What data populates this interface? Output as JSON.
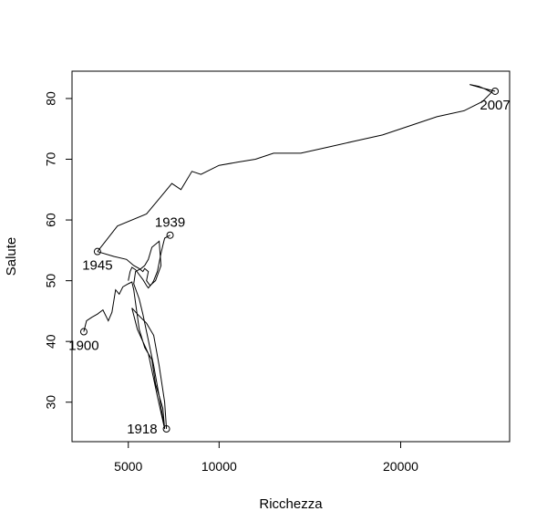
{
  "chart_data": {
    "type": "line",
    "title": "",
    "xlabel": "Ricchezza",
    "ylabel": "Salute",
    "x_ticks": [
      5000,
      10000,
      20000
    ],
    "y_ticks": [
      30,
      40,
      50,
      60,
      70,
      80
    ],
    "xlim": [
      1900,
      26000
    ],
    "ylim": [
      23.5,
      84.5
    ],
    "grid": false,
    "legend": "none",
    "line_color": "#000000",
    "series": [
      {
        "x": [
          2550,
          2700,
          3000,
          3300,
          3600,
          3900,
          4100,
          4300,
          4500,
          4700,
          5000,
          5200,
          5300,
          5600,
          5900,
          6300,
          6500,
          6900,
          7000,
          6600,
          6100,
          5500,
          5200,
          5500,
          6000,
          6400,
          6700,
          7000,
          7100
        ],
        "y": [
          41.6,
          43.4,
          44.0,
          44.5,
          45.2,
          43.4,
          44.8,
          48.5,
          47.8,
          49.0,
          49.5,
          49.8,
          48.5,
          42.0,
          39.0,
          37.0,
          33.0,
          29.0,
          25.6,
          31.0,
          38.0,
          42.0,
          45.5,
          44.5,
          43.0,
          41.0,
          36.0,
          30.0,
          25.6
        ]
      },
      {
        "x": [
          7000,
          6700,
          6400,
          5800,
          5600,
          5300,
          5400,
          5700,
          5900,
          6100,
          6300,
          6700,
          6800,
          6500,
          6200,
          6000,
          6100,
          5900,
          5800,
          5600,
          5300,
          4900,
          4200,
          3300
        ],
        "y": [
          25.6,
          31.0,
          36.0,
          44.5,
          47.0,
          49.5,
          51.5,
          52.0,
          52.5,
          53.5,
          55.5,
          56.5,
          52.5,
          50.0,
          49.2,
          50.0,
          51.5,
          52.0,
          51.5,
          52.0,
          52.5,
          53.5,
          54.0,
          54.8
        ]
      },
      {
        "x": [
          7300,
          7000,
          6900,
          6800,
          6700,
          6600,
          6400,
          6300,
          6100,
          6000,
          5800,
          5600,
          5400,
          5200,
          5100,
          5000
        ],
        "y": [
          57.5,
          57.0,
          55.8,
          54.5,
          53.0,
          51.5,
          50.0,
          49.5,
          48.8,
          49.2,
          50.2,
          51.0,
          51.8,
          52.2,
          51.5,
          50.0
        ]
      },
      {
        "x": [
          3300,
          4400,
          6000,
          6700,
          7400,
          7900,
          8500,
          9000,
          10000,
          11000,
          12000,
          13000,
          14500,
          16000,
          17500,
          19000,
          20500,
          22000,
          23500,
          24500,
          25000,
          24700,
          24300,
          23800,
          24400,
          25200
        ],
        "y": [
          54.8,
          59.0,
          61.0,
          63.5,
          66.0,
          65.0,
          68.0,
          67.5,
          69.0,
          69.5,
          70.0,
          71.0,
          71.0,
          72.0,
          73.0,
          74.0,
          75.5,
          77.0,
          78.0,
          79.5,
          81.0,
          81.5,
          82.0,
          82.3,
          81.8,
          81.2
        ]
      }
    ],
    "markers": [
      {
        "label": "1900",
        "x": 2550,
        "y": 41.6,
        "label_pos": "below"
      },
      {
        "label": "1918",
        "x": 7100,
        "y": 25.6,
        "label_pos": "left"
      },
      {
        "label": "1939",
        "x": 7300,
        "y": 57.5,
        "label_pos": "above"
      },
      {
        "label": "1945",
        "x": 3300,
        "y": 54.8,
        "label_pos": "below"
      },
      {
        "label": "2007",
        "x": 25200,
        "y": 81.2,
        "label_pos": "below"
      }
    ]
  }
}
